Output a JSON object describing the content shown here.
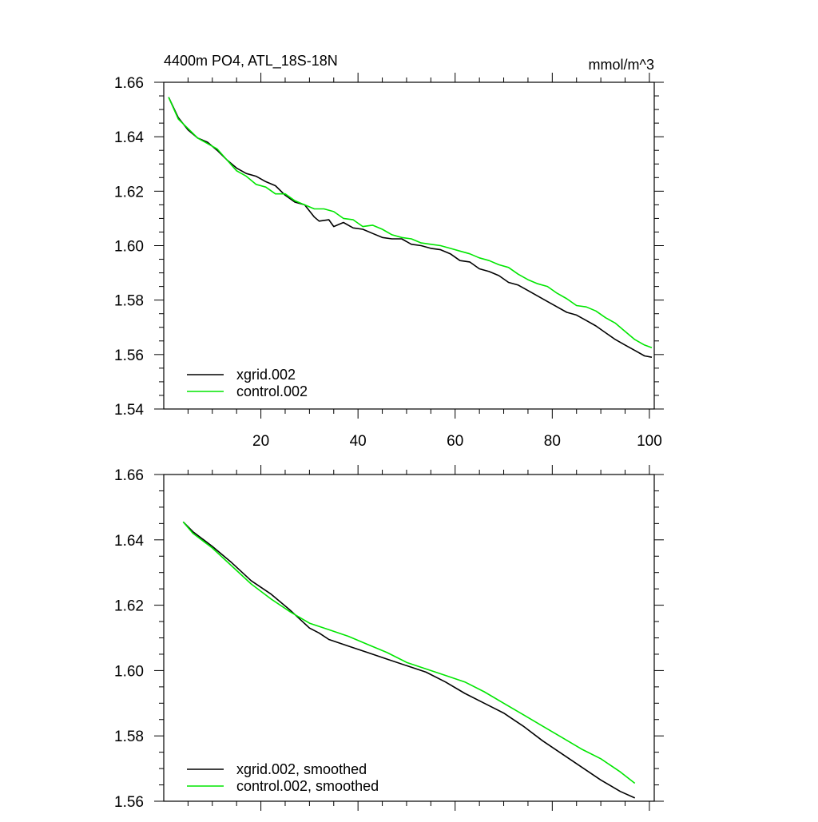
{
  "chart_data": [
    {
      "type": "line",
      "title": "4400m PO4, ATL_18S-18N",
      "units_label": "mmol/m^3",
      "xlim": [
        0,
        101
      ],
      "ylim": [
        1.54,
        1.66
      ],
      "x_ticks": [
        20,
        40,
        60,
        80,
        100
      ],
      "x_tick_labels": [
        "20",
        "40",
        "60",
        "80",
        "100"
      ],
      "y_ticks": [
        1.54,
        1.56,
        1.58,
        1.6,
        1.62,
        1.64,
        1.66
      ],
      "y_tick_labels": [
        "1.54",
        "1.56",
        "1.58",
        "1.60",
        "1.62",
        "1.64",
        "1.66"
      ],
      "legend_position": "bottom-left",
      "grid": false,
      "series": [
        {
          "name": "xgrid.002",
          "color": "#000000",
          "points": [
            [
              1,
              1.6545
            ],
            [
              3,
              1.647
            ],
            [
              5,
              1.6425
            ],
            [
              7,
              1.6395
            ],
            [
              9,
              1.638
            ],
            [
              11,
              1.635
            ],
            [
              13,
              1.6315
            ],
            [
              15,
              1.6285
            ],
            [
              17,
              1.6265
            ],
            [
              19,
              1.6255
            ],
            [
              21,
              1.6235
            ],
            [
              23,
              1.622
            ],
            [
              25,
              1.6185
            ],
            [
              27,
              1.616
            ],
            [
              29,
              1.615
            ],
            [
              31,
              1.6105
            ],
            [
              32,
              1.609
            ],
            [
              34,
              1.6095
            ],
            [
              35,
              1.607
            ],
            [
              37,
              1.6085
            ],
            [
              39,
              1.6065
            ],
            [
              41,
              1.606
            ],
            [
              43,
              1.6045
            ],
            [
              45,
              1.603
            ],
            [
              47,
              1.6025
            ],
            [
              49,
              1.6025
            ],
            [
              51,
              1.6005
            ],
            [
              53,
              1.6
            ],
            [
              55,
              1.599
            ],
            [
              57,
              1.5985
            ],
            [
              59,
              1.597
            ],
            [
              61,
              1.5945
            ],
            [
              63,
              1.594
            ],
            [
              65,
              1.5915
            ],
            [
              67,
              1.5905
            ],
            [
              69,
              1.589
            ],
            [
              71,
              1.5865
            ],
            [
              73,
              1.5855
            ],
            [
              75,
              1.5835
            ],
            [
              77,
              1.5815
            ],
            [
              79,
              1.5795
            ],
            [
              81,
              1.5775
            ],
            [
              83,
              1.5755
            ],
            [
              85,
              1.5745
            ],
            [
              87,
              1.5725
            ],
            [
              89,
              1.5705
            ],
            [
              91,
              1.568
            ],
            [
              93,
              1.5655
            ],
            [
              95,
              1.5635
            ],
            [
              97,
              1.5615
            ],
            [
              99,
              1.5595
            ],
            [
              100.5,
              1.559
            ]
          ]
        },
        {
          "name": "control.002",
          "color": "#00e600",
          "points": [
            [
              1,
              1.6545
            ],
            [
              3,
              1.6465
            ],
            [
              5,
              1.643
            ],
            [
              7,
              1.6395
            ],
            [
              9,
              1.6375
            ],
            [
              11,
              1.6355
            ],
            [
              13,
              1.6315
            ],
            [
              15,
              1.6275
            ],
            [
              17,
              1.6255
            ],
            [
              19,
              1.6225
            ],
            [
              21,
              1.6215
            ],
            [
              23,
              1.619
            ],
            [
              25,
              1.619
            ],
            [
              27,
              1.6165
            ],
            [
              29,
              1.615
            ],
            [
              31,
              1.6135
            ],
            [
              33,
              1.6135
            ],
            [
              35,
              1.6125
            ],
            [
              37,
              1.61
            ],
            [
              39,
              1.6095
            ],
            [
              41,
              1.607
            ],
            [
              43,
              1.6075
            ],
            [
              45,
              1.606
            ],
            [
              47,
              1.604
            ],
            [
              49,
              1.603
            ],
            [
              51,
              1.6025
            ],
            [
              53,
              1.601
            ],
            [
              55,
              1.6005
            ],
            [
              57,
              1.6
            ],
            [
              59,
              1.599
            ],
            [
              61,
              1.598
            ],
            [
              63,
              1.597
            ],
            [
              65,
              1.5955
            ],
            [
              67,
              1.5945
            ],
            [
              69,
              1.593
            ],
            [
              71,
              1.592
            ],
            [
              73,
              1.5895
            ],
            [
              75,
              1.5875
            ],
            [
              77,
              1.586
            ],
            [
              79,
              1.585
            ],
            [
              81,
              1.5825
            ],
            [
              83,
              1.5805
            ],
            [
              85,
              1.578
            ],
            [
              87,
              1.5775
            ],
            [
              89,
              1.576
            ],
            [
              91,
              1.5735
            ],
            [
              93,
              1.5715
            ],
            [
              95,
              1.5685
            ],
            [
              97,
              1.5655
            ],
            [
              99,
              1.5635
            ],
            [
              100.5,
              1.5625
            ]
          ]
        }
      ]
    },
    {
      "type": "line",
      "title": "",
      "xlim": [
        0,
        101
      ],
      "ylim": [
        1.56,
        1.66
      ],
      "x_ticks": [
        20,
        40,
        60,
        80,
        100
      ],
      "y_ticks": [
        1.56,
        1.58,
        1.6,
        1.62,
        1.64,
        1.66
      ],
      "y_tick_labels": [
        "1.56",
        "1.58",
        "1.60",
        "1.62",
        "1.64",
        "1.66"
      ],
      "legend_position": "bottom-left",
      "grid": false,
      "series": [
        {
          "name": "xgrid.002, smoothed",
          "color": "#000000",
          "points": [
            [
              4,
              1.6455
            ],
            [
              6,
              1.6425
            ],
            [
              10,
              1.638
            ],
            [
              14,
              1.633
            ],
            [
              18,
              1.6275
            ],
            [
              22,
              1.6235
            ],
            [
              26,
              1.6185
            ],
            [
              30,
              1.613
            ],
            [
              32,
              1.6115
            ],
            [
              34,
              1.6095
            ],
            [
              38,
              1.6075
            ],
            [
              42,
              1.6055
            ],
            [
              46,
              1.6035
            ],
            [
              50,
              1.6015
            ],
            [
              54,
              1.5995
            ],
            [
              58,
              1.5965
            ],
            [
              62,
              1.593
            ],
            [
              66,
              1.59
            ],
            [
              70,
              1.587
            ],
            [
              74,
              1.583
            ],
            [
              78,
              1.5785
            ],
            [
              82,
              1.5745
            ],
            [
              86,
              1.5705
            ],
            [
              90,
              1.5665
            ],
            [
              94,
              1.563
            ],
            [
              97,
              1.561
            ]
          ]
        },
        {
          "name": "control.002, smoothed",
          "color": "#00e600",
          "points": [
            [
              4,
              1.6455
            ],
            [
              6,
              1.642
            ],
            [
              10,
              1.6375
            ],
            [
              14,
              1.632
            ],
            [
              18,
              1.6265
            ],
            [
              22,
              1.622
            ],
            [
              26,
              1.618
            ],
            [
              30,
              1.6145
            ],
            [
              34,
              1.6125
            ],
            [
              38,
              1.6105
            ],
            [
              42,
              1.608
            ],
            [
              46,
              1.6055
            ],
            [
              50,
              1.6025
            ],
            [
              54,
              1.6005
            ],
            [
              58,
              1.5985
            ],
            [
              62,
              1.5965
            ],
            [
              66,
              1.5935
            ],
            [
              70,
              1.59
            ],
            [
              74,
              1.5865
            ],
            [
              78,
              1.583
            ],
            [
              82,
              1.5795
            ],
            [
              86,
              1.576
            ],
            [
              90,
              1.573
            ],
            [
              94,
              1.569
            ],
            [
              97,
              1.5655
            ]
          ]
        }
      ]
    }
  ]
}
